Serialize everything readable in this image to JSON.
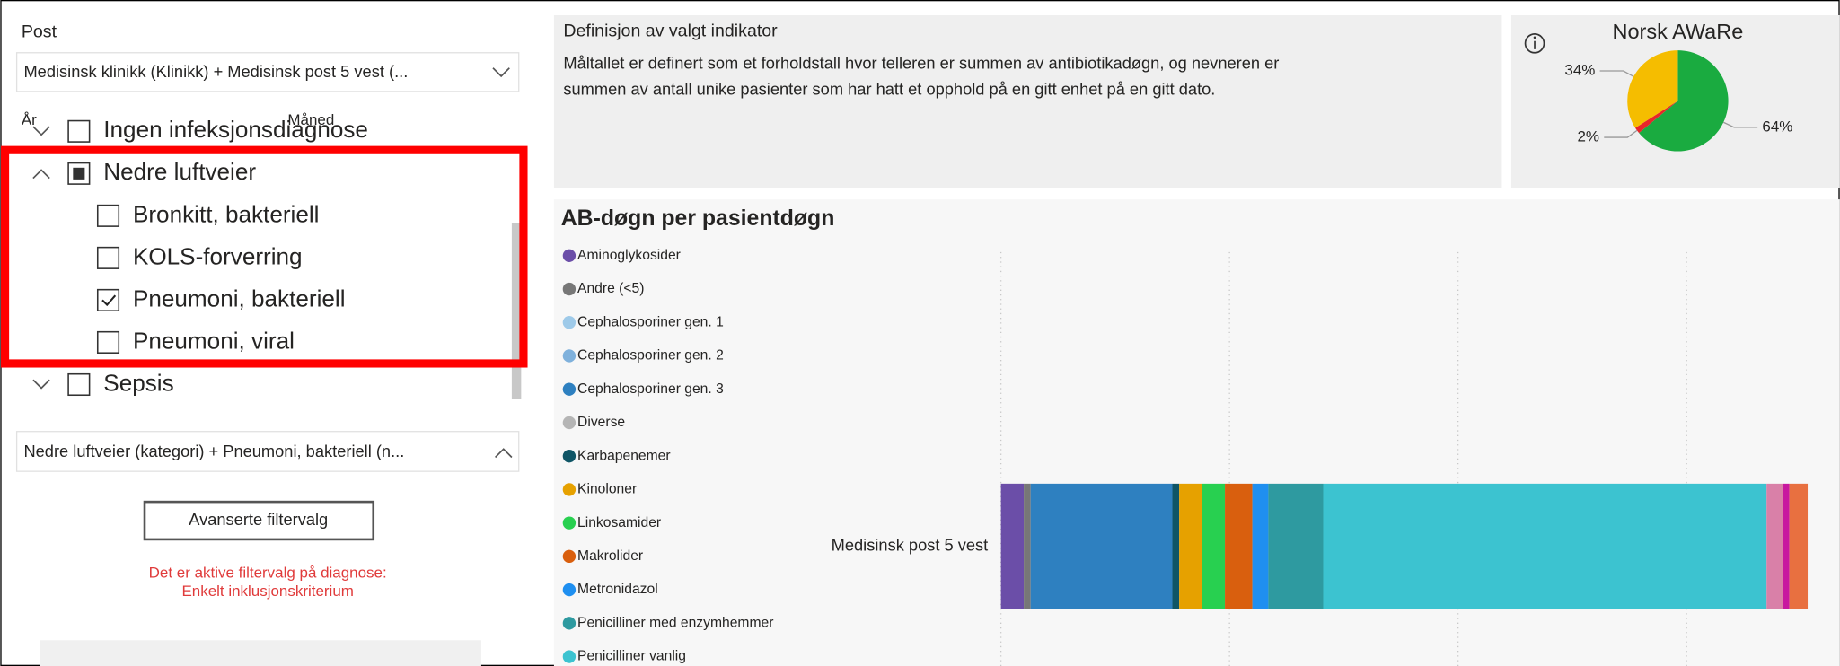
{
  "filter_panel": {
    "post_label": "Post",
    "post_selection": "Medisinsk klinikk (Klinikk) + Medisinsk post 5 vest (...",
    "year_label": "År",
    "month_label": "Måned",
    "tree": [
      {
        "label": "Ingen infeksjonsdiagnose",
        "level": 0,
        "state": "unchecked",
        "expanded": false
      },
      {
        "label": "Nedre luftveier",
        "level": 0,
        "state": "partial",
        "expanded": true
      },
      {
        "label": "Bronkitt, bakteriell",
        "level": 1,
        "state": "unchecked"
      },
      {
        "label": "KOLS-forverring",
        "level": 1,
        "state": "unchecked"
      },
      {
        "label": "Pneumoni, bakteriell",
        "level": 1,
        "state": "checked"
      },
      {
        "label": "Pneumoni, viral",
        "level": 1,
        "state": "unchecked"
      },
      {
        "label": "Sepsis",
        "level": 0,
        "state": "unchecked",
        "expanded": false
      }
    ],
    "diagnosis_selection": "Nedre luftveier (kategori) + Pneumoni, bakteriell (n...",
    "advanced_button": "Avanserte filtervalg",
    "warning": [
      "Det er aktive filtervalg på diagnose:",
      "Enkelt inklusjonskriterium"
    ]
  },
  "definition": {
    "title": "Definisjon av valgt indikator",
    "lines": [
      "Måltallet er definert som et forholdstall hvor telleren er summen av antibiotikadøgn, og nevneren er",
      "summen av antall unike pasienter som har hatt et opphold på en gitt enhet på en gitt dato."
    ]
  },
  "chart_data": [
    {
      "type": "pie",
      "title": "Norsk AWaRe",
      "values": [
        64,
        2,
        34
      ],
      "value_labels": [
        "64%",
        "2%",
        "34%"
      ],
      "colors": [
        "#1aab40",
        "#e8262a",
        "#f5bd00"
      ]
    },
    {
      "type": "bar",
      "title": "AB-døgn per pasientdøgn",
      "orientation": "horizontal",
      "stacked": true,
      "categories": [
        "Medisinsk post 5 vest"
      ],
      "xlim": [
        0,
        3.67
      ],
      "xticks": [
        0,
        1,
        2,
        3
      ],
      "grid": true,
      "series": [
        {
          "name": "Aminoglykosider",
          "color": "#6b4ea8",
          "values": [
            0.1
          ]
        },
        {
          "name": "Andre (<5)",
          "color": "#777777",
          "values": [
            0.03
          ]
        },
        {
          "name": "Cephalosporiner gen. 1",
          "color": "#9ecae9",
          "values": [
            0
          ]
        },
        {
          "name": "Cephalosporiner gen. 2",
          "color": "#7fb1dc",
          "values": [
            0
          ]
        },
        {
          "name": "Cephalosporiner gen. 3",
          "color": "#2e80c0",
          "values": [
            0.62
          ]
        },
        {
          "name": "Diverse",
          "color": "#b5b5b5",
          "values": [
            0
          ]
        },
        {
          "name": "Karbapenemer",
          "color": "#0f5566",
          "values": [
            0.03
          ]
        },
        {
          "name": "Kinoloner",
          "color": "#e6a100",
          "values": [
            0.1
          ]
        },
        {
          "name": "Linkosamider",
          "color": "#28d050",
          "values": [
            0.1
          ]
        },
        {
          "name": "Makrolider",
          "color": "#d95f0e",
          "values": [
            0.12
          ]
        },
        {
          "name": "Metronidazol",
          "color": "#1f8ff0",
          "values": [
            0.07
          ]
        },
        {
          "name": "Penicilliner med enzymhemmer",
          "color": "#2e9aa0",
          "values": [
            0.24
          ]
        },
        {
          "name": "Penicilliner vanlig",
          "color": "#3cc3d0",
          "values": [
            1.94
          ]
        },
        {
          "name": null,
          "color": "#d980a8",
          "values": [
            0.07
          ]
        },
        {
          "name": null,
          "color": "#c8189f",
          "values": [
            0.03
          ]
        },
        {
          "name": null,
          "color": "#e87040",
          "values": [
            0.08
          ]
        }
      ]
    }
  ]
}
